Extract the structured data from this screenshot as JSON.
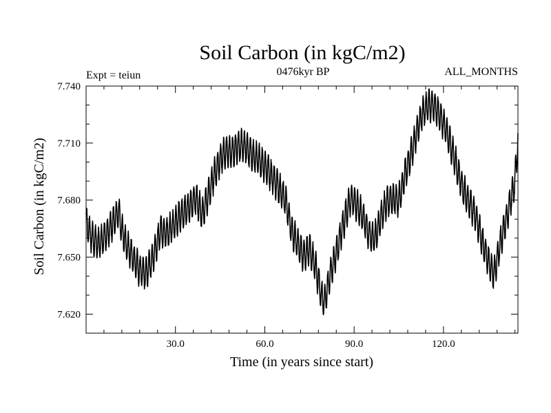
{
  "chart_data": {
    "type": "line",
    "title": "Soil Carbon (in kgC/m2)",
    "subtitle": "0476kyr BP",
    "left_label": "Expt = teiun",
    "right_label": "ALL_MONTHS",
    "xlabel": "Time (in years since start)",
    "ylabel": "Soil Carbon (in kgC/m2)",
    "xlim": [
      0,
      145
    ],
    "ylim": [
      7.61,
      7.74
    ],
    "x_ticks": [
      30,
      60,
      90,
      120
    ],
    "x_tick_labels": [
      "30.0",
      "60.0",
      "90.0",
      "120.0"
    ],
    "y_ticks": [
      7.62,
      7.65,
      7.68,
      7.71,
      7.74
    ],
    "y_tick_labels": [
      "7.620",
      "7.650",
      "7.680",
      "7.710",
      "7.740"
    ],
    "x_minor_step": 6,
    "y_minor_step": 0.01,
    "monthly_amplitude": 0.008,
    "series": [
      {
        "name": "Soil Carbon",
        "anchor_x": [
          0,
          2,
          4,
          7,
          9,
          11,
          12,
          14,
          16,
          18,
          20,
          22,
          24,
          25,
          27,
          29,
          31,
          33,
          35,
          37,
          39,
          41,
          43,
          45,
          47,
          49,
          51,
          53,
          55,
          57,
          59,
          61,
          63,
          65,
          67,
          69,
          71,
          73,
          75,
          77,
          79,
          80,
          82,
          84,
          86,
          88,
          89,
          91,
          93,
          95,
          97,
          99,
          101,
          103,
          105,
          107,
          109,
          111,
          113,
          115,
          117,
          119,
          121,
          123,
          125,
          127,
          129,
          131,
          133,
          135,
          137,
          139,
          141,
          142,
          144,
          145
        ],
        "anchor_y": [
          7.668,
          7.66,
          7.657,
          7.662,
          7.668,
          7.674,
          7.664,
          7.655,
          7.649,
          7.643,
          7.641,
          7.648,
          7.658,
          7.664,
          7.662,
          7.666,
          7.671,
          7.674,
          7.677,
          7.681,
          7.672,
          7.683,
          7.693,
          7.701,
          7.706,
          7.705,
          7.708,
          7.709,
          7.705,
          7.702,
          7.7,
          7.696,
          7.691,
          7.686,
          7.68,
          7.664,
          7.657,
          7.651,
          7.654,
          7.645,
          7.63,
          7.626,
          7.641,
          7.652,
          7.665,
          7.677,
          7.681,
          7.677,
          7.671,
          7.662,
          7.66,
          7.671,
          7.679,
          7.681,
          7.68,
          7.693,
          7.703,
          7.716,
          7.726,
          7.73,
          7.729,
          7.724,
          7.716,
          7.706,
          7.694,
          7.684,
          7.678,
          7.671,
          7.658,
          7.648,
          7.641,
          7.657,
          7.669,
          7.676,
          7.69,
          7.712
        ]
      }
    ]
  }
}
